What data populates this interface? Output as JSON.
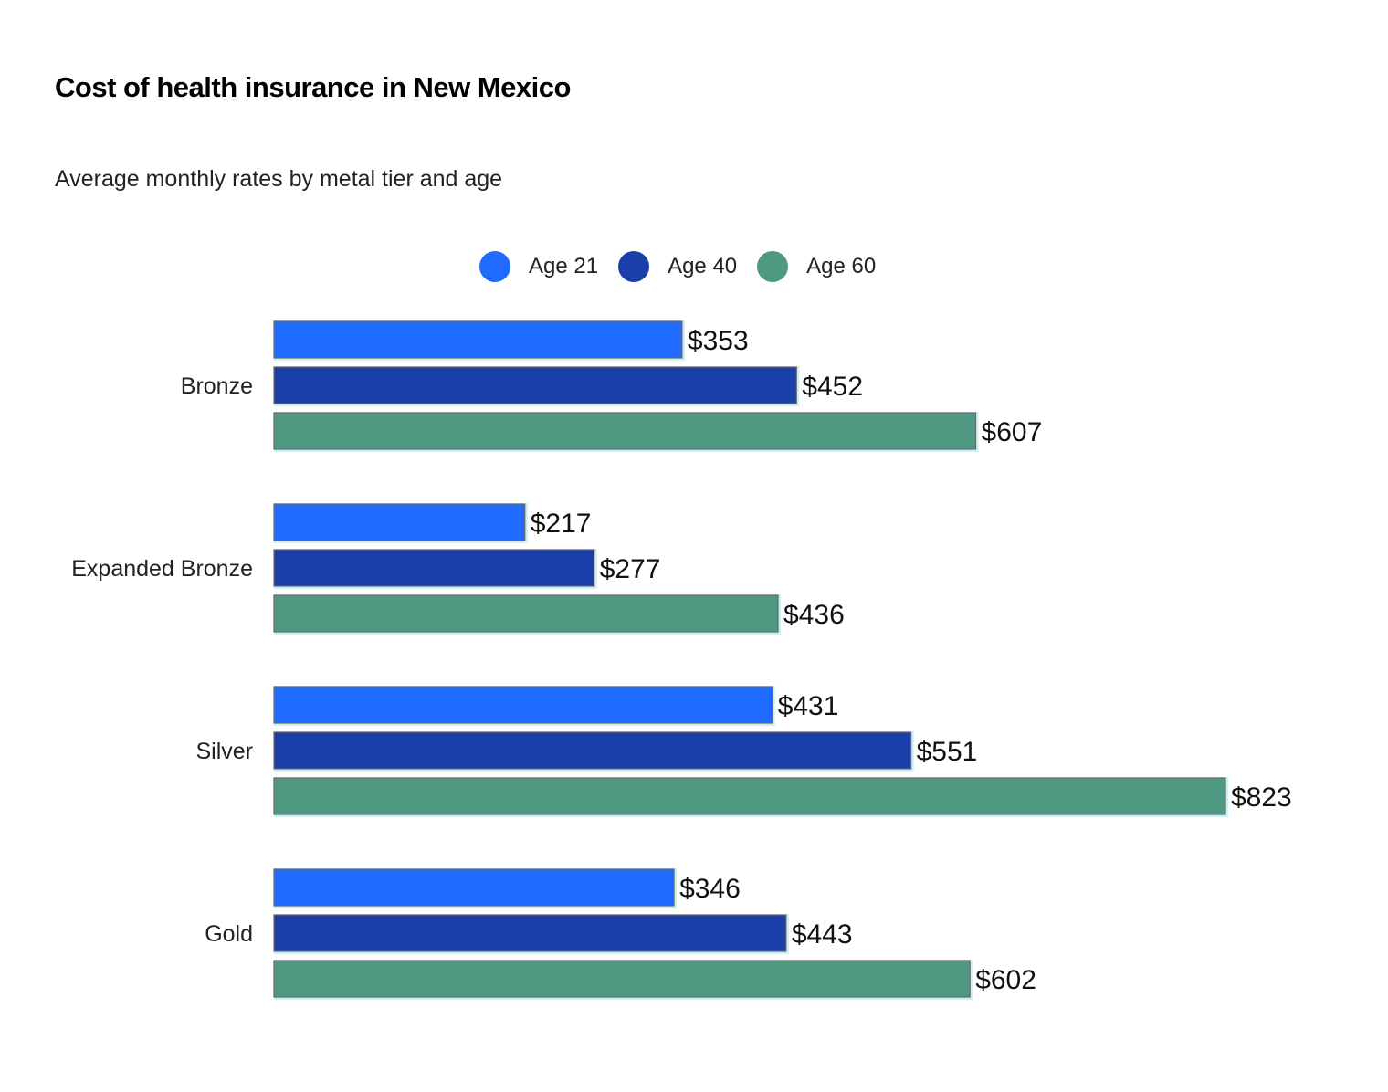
{
  "title": "Cost of health insurance in New Mexico",
  "subtitle": "Average monthly rates by metal tier and age",
  "legend": [
    {
      "label": "Age 21",
      "color": "#1f6bff"
    },
    {
      "label": "Age 40",
      "color": "#1a3fa8"
    },
    {
      "label": "Age 60",
      "color": "#4f9882"
    }
  ],
  "chart_data": {
    "type": "bar",
    "orientation": "horizontal",
    "title": "Cost of health insurance in New Mexico",
    "subtitle": "Average monthly rates by metal tier and age",
    "categories": [
      "Bronze",
      "Expanded Bronze",
      "Silver",
      "Gold"
    ],
    "series": [
      {
        "name": "Age 21",
        "color": "#1f6bff",
        "values": [
          353,
          217,
          431,
          346
        ],
        "labels": [
          "$353",
          "$217",
          "$431",
          "$346"
        ]
      },
      {
        "name": "Age 40",
        "color": "#1a3fa8",
        "values": [
          452,
          277,
          551,
          443
        ],
        "labels": [
          "$452",
          "$277",
          "$551",
          "$443"
        ]
      },
      {
        "name": "Age 60",
        "color": "#4f9882",
        "values": [
          607,
          436,
          823,
          602
        ],
        "labels": [
          "$607",
          "$436",
          "$823",
          "$602"
        ]
      }
    ],
    "xlim": [
      0,
      823
    ],
    "grid": false,
    "legend": "top-center"
  }
}
